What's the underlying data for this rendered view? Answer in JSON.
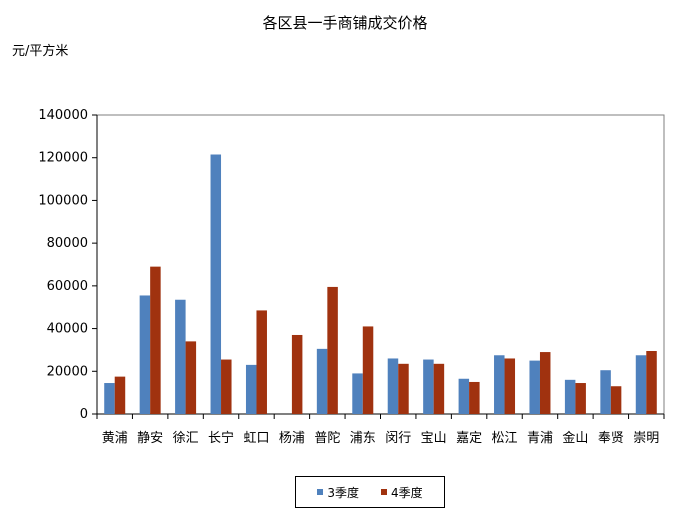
{
  "chart_data": {
    "type": "bar",
    "title": "各区县一手商铺成交价格",
    "ylabel": "元/平方米",
    "xlabel": "",
    "ylim": [
      0,
      140000
    ],
    "yticks": [
      0,
      20000,
      40000,
      60000,
      80000,
      100000,
      120000,
      140000
    ],
    "grid": false,
    "legend_position": "bottom",
    "categories": [
      "黄浦",
      "静安",
      "徐汇",
      "长宁",
      "虹口",
      "杨浦",
      "普陀",
      "浦东",
      "闵行",
      "宝山",
      "嘉定",
      "松江",
      "青浦",
      "金山",
      "奉贤",
      "崇明"
    ],
    "series": [
      {
        "name": "3季度",
        "color": "#4F81BD",
        "values": [
          14500,
          55500,
          53500,
          121500,
          23000,
          null,
          30500,
          19000,
          26000,
          25500,
          16500,
          27500,
          25000,
          16000,
          20500,
          27500
        ]
      },
      {
        "name": "4季度",
        "color": "#A0320F",
        "values": [
          17500,
          69000,
          34000,
          25500,
          48500,
          37000,
          59500,
          41000,
          23500,
          23500,
          15000,
          26000,
          29000,
          14500,
          13000,
          29500
        ]
      }
    ]
  }
}
